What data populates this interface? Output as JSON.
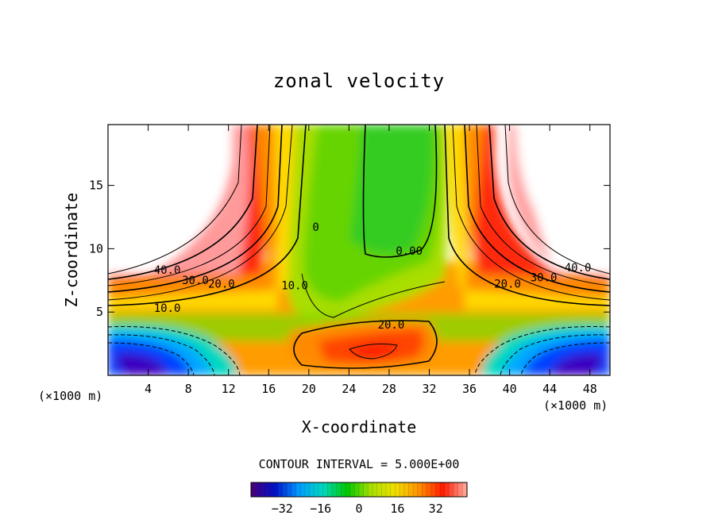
{
  "chart_data": {
    "type": "heatmap",
    "title": "zonal velocity",
    "xlabel": "X-coordinate",
    "ylabel": "Z-coordinate",
    "x_unit_left": "(×1000 m)",
    "x_unit_right": "(×1000 m)",
    "xlim": [
      0,
      50
    ],
    "ylim": [
      0,
      19.8
    ],
    "x_ticks": [
      4,
      8,
      12,
      16,
      20,
      24,
      28,
      32,
      36,
      40,
      44,
      48
    ],
    "y_ticks": [
      5,
      10,
      15
    ],
    "grid": false,
    "contour_interval_text": "CONTOUR INTERVAL = 5.000E+00",
    "contour_interval": 5.0,
    "contour_labels": [
      {
        "text": "40.0",
        "x": 5.9,
        "z": 8.2
      },
      {
        "text": "30.0",
        "x": 8.7,
        "z": 7.4
      },
      {
        "text": "20.0",
        "x": 11.3,
        "z": 7.1
      },
      {
        "text": "10.0",
        "x": 5.9,
        "z": 5.2
      },
      {
        "text": "0",
        "x": 20.7,
        "z": 11.6
      },
      {
        "text": "0.00",
        "x": 30.0,
        "z": 9.7
      },
      {
        "text": "10.0",
        "x": 18.6,
        "z": 7.0
      },
      {
        "text": "20.0",
        "x": 28.2,
        "z": 3.9
      },
      {
        "text": "20.0",
        "x": 39.8,
        "z": 7.1
      },
      {
        "text": "30.0",
        "x": 43.4,
        "z": 7.6
      },
      {
        "text": "40.0",
        "x": 46.8,
        "z": 8.4
      }
    ],
    "colorbar": {
      "range": [
        -45,
        45
      ],
      "ticks": [
        -32,
        -16,
        0,
        16,
        32
      ],
      "colormap": [
        "#4b007a",
        "#0010c8",
        "#009cff",
        "#00d8c0",
        "#00c800",
        "#a8e000",
        "#f0e000",
        "#ff9000",
        "#ff1a00",
        "#ffb0a0"
      ]
    }
  }
}
